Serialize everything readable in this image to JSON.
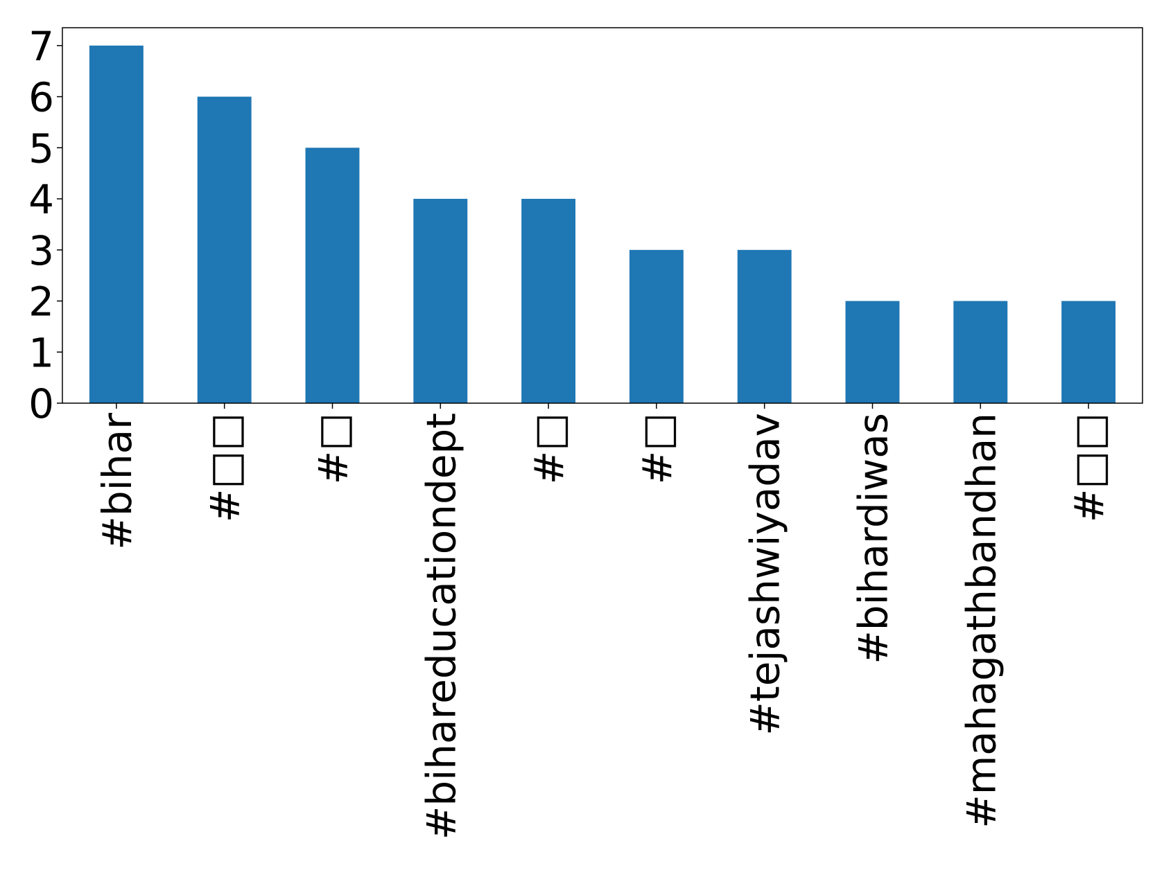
{
  "chart_data": {
    "type": "bar",
    "categories": [
      "#bihar",
      "#□□",
      "#□",
      "#bihareducationdept",
      "#□",
      "#□",
      "#tejashwiyadav",
      "#bihardiwas",
      "#mahagathbandhan",
      "#□□"
    ],
    "values": [
      7,
      6,
      5,
      4,
      4,
      3,
      3,
      2,
      2,
      2
    ],
    "color": "#1f77b4",
    "ylim": [
      0,
      7.35
    ],
    "yticks": [
      0,
      1,
      2,
      3,
      4,
      5,
      6,
      7
    ],
    "grid": false
  }
}
